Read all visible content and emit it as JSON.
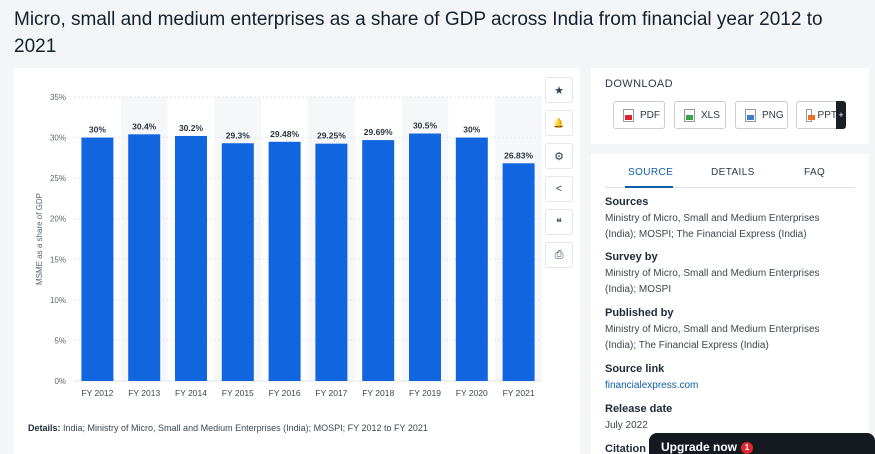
{
  "title": "Micro, small and medium enterprises as a share of GDP across India from financial year 2012 to 2021",
  "details": {
    "label": "Details:",
    "text": "India; Ministry of Micro, Small and Medium Enterprises (India); MOSPI; FY 2012 to FY 2021"
  },
  "toolbar": {
    "icons": [
      "star-icon",
      "bell-icon",
      "gear-icon",
      "share-icon",
      "quote-icon",
      "print-icon"
    ],
    "glyphs": [
      "★",
      "🔔",
      "⚙",
      "<",
      "❝",
      "⎙"
    ]
  },
  "download": {
    "title": "DOWNLOAD",
    "buttons": [
      {
        "label": "PDF",
        "color": "#d9252a"
      },
      {
        "label": "XLS",
        "color": "#3aa34a"
      },
      {
        "label": "PNG",
        "color": "#3f7fc6"
      },
      {
        "label": "PPT",
        "color": "#e8742a"
      }
    ],
    "more": "+"
  },
  "tabs": [
    "SOURCE",
    "DETAILS",
    "FAQ"
  ],
  "source": {
    "sources_head": "Sources",
    "sources_text": "Ministry of Micro, Small and Medium Enterprises (India); MOSPI; The Financial Express (India)",
    "survey_head": "Survey by",
    "survey_text": "Ministry of Micro, Small and Medium Enterprises (India); MOSPI",
    "published_head": "Published by",
    "published_text": "Ministry of Micro, Small and Medium Enterprises (India); The Financial Express (India)",
    "link_head": "Source link",
    "link_text": "financialexpress.com",
    "release_head": "Release date",
    "release_text": "July 2022",
    "citation_head": "Citation"
  },
  "upgrade": {
    "label": "Upgrade now",
    "badge": "1"
  },
  "chart_data": {
    "type": "bar",
    "categories": [
      "FY 2012",
      "FY 2013",
      "FY 2014",
      "FY 2015",
      "FY 2016",
      "FY 2017",
      "FY 2018",
      "FY 2019",
      "FY 2020",
      "FY 2021"
    ],
    "values": [
      30,
      30.4,
      30.2,
      29.3,
      29.48,
      29.25,
      29.69,
      30.5,
      30,
      26.83
    ],
    "labels": [
      "30%",
      "30.4%",
      "30.2%",
      "29.3%",
      "29.48%",
      "29.25%",
      "29.69%",
      "30.5%",
      "30%",
      "26.83%"
    ],
    "yticks": [
      "0%",
      "5%",
      "10%",
      "15%",
      "20%",
      "25%",
      "30%",
      "35%"
    ],
    "ylabel": "MSME as a share of GDP",
    "ylim": [
      0,
      35
    ],
    "bar_color": "#1166e0",
    "grid": true
  }
}
